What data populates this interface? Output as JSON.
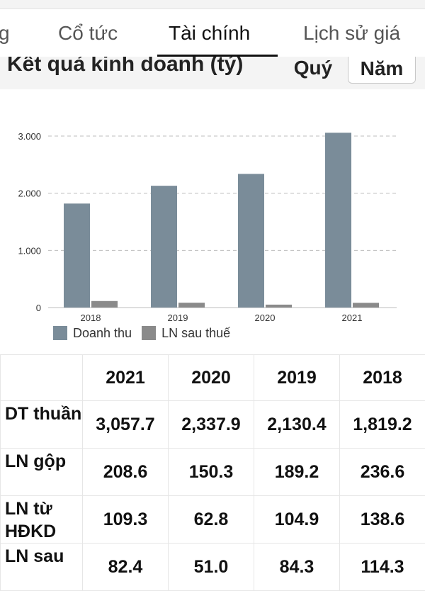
{
  "tabs": [
    {
      "label": "g"
    },
    {
      "label": "Cổ tức"
    },
    {
      "label": "Tài chính"
    },
    {
      "label": "Lịch sử giá"
    }
  ],
  "section": {
    "title": "Kết quả kinh doanh (tỷ)",
    "period_quarter": "Quý",
    "period_year": "Năm"
  },
  "colors": {
    "revenue": "#7a8c99",
    "profit": "#8a8a8a",
    "grid": "#bdbdbd"
  },
  "chart_data": {
    "type": "bar",
    "categories": [
      "2018",
      "2019",
      "2020",
      "2021"
    ],
    "series": [
      {
        "name": "Doanh thu",
        "values": [
          1819.2,
          2130.4,
          2337.9,
          3057.7
        ]
      },
      {
        "name": "LN sau thuế",
        "values": [
          114.3,
          84.3,
          51.0,
          82.4
        ]
      }
    ],
    "yticks": [
      "0",
      "1.000",
      "2.000",
      "3.000"
    ],
    "ylim": [
      0,
      3000
    ],
    "grid": true,
    "legend_position": "bottom-left"
  },
  "table": {
    "headers": [
      "",
      "2021",
      "2020",
      "2019",
      "2018"
    ],
    "rows": [
      {
        "label": "DT thuần",
        "values": [
          "3,057.7",
          "2,337.9",
          "2,130.4",
          "1,819.2"
        ]
      },
      {
        "label": "LN gộp",
        "values": [
          "208.6",
          "150.3",
          "189.2",
          "236.6"
        ]
      },
      {
        "label": "LN từ HĐKD",
        "values": [
          "109.3",
          "62.8",
          "104.9",
          "138.6"
        ]
      },
      {
        "label": "LN sau",
        "values": [
          "82.4",
          "51.0",
          "84.3",
          "114.3"
        ]
      }
    ]
  }
}
